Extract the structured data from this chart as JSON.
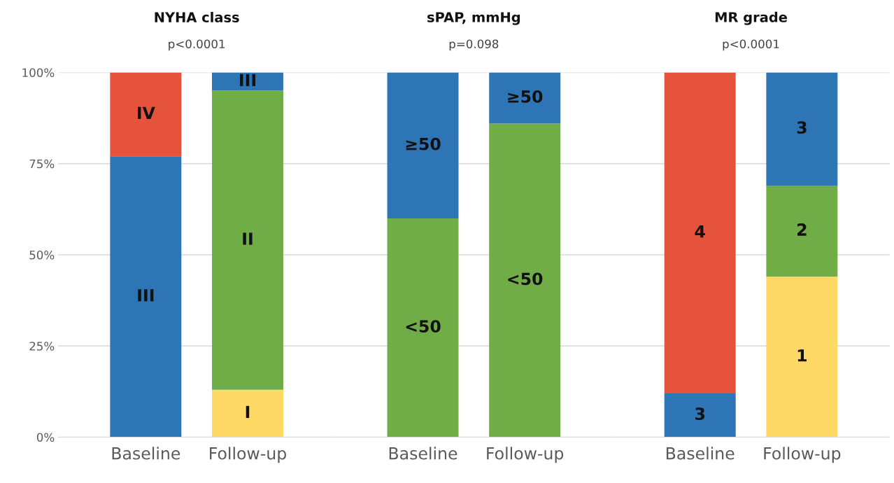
{
  "chart_data": [
    {
      "type": "bar",
      "stacked": true,
      "title": "NYHA class",
      "subtitle": "p<0.0001",
      "categories": [
        "Baseline",
        "Follow-up"
      ],
      "ylim": [
        0,
        100
      ],
      "yticks": [
        {
          "value": 0,
          "label": "0%"
        },
        {
          "value": 25,
          "label": "25%"
        },
        {
          "value": 50,
          "label": "50%"
        },
        {
          "value": 75,
          "label": "75%"
        },
        {
          "value": 100,
          "label": "100%"
        }
      ],
      "grid": "y",
      "series": [
        {
          "name": "I",
          "color": "#ffd966",
          "values": [
            null,
            13
          ]
        },
        {
          "name": "II",
          "color": "#70ad47",
          "values": [
            null,
            82
          ]
        },
        {
          "name": "III",
          "color": "#2e75b6",
          "values": [
            77,
            5
          ]
        },
        {
          "name": "IV",
          "color": "#e5533d",
          "values": [
            23,
            null
          ]
        }
      ]
    },
    {
      "type": "bar",
      "stacked": true,
      "title": "sPAP, mmHg",
      "subtitle": "p=0.098",
      "categories": [
        "Baseline",
        "Follow-up"
      ],
      "ylim": [
        0,
        100
      ],
      "grid": "y",
      "tick_labels": "x",
      "series": [
        {
          "name": "<50",
          "color": "#70ad47",
          "values": [
            60,
            86
          ]
        },
        {
          "name": "≥50",
          "color": "#2e75b6",
          "values": [
            40,
            14
          ]
        }
      ]
    },
    {
      "type": "bar",
      "stacked": true,
      "title": "MR grade",
      "subtitle": "p<0.0001",
      "categories": [
        "Baseline",
        "Follow-up"
      ],
      "ylim": [
        0,
        100
      ],
      "grid": "y",
      "tick_labels": "x",
      "series": [
        {
          "name": "1",
          "color": "#ffd966",
          "values": [
            null,
            44
          ]
        },
        {
          "name": "2",
          "color": "#70ad47",
          "values": [
            null,
            25
          ]
        },
        {
          "name": "3",
          "color": "#2e75b6",
          "values": [
            12,
            31
          ]
        },
        {
          "name": "4",
          "color": "#e5533d",
          "values": [
            88,
            null
          ]
        }
      ]
    }
  ]
}
